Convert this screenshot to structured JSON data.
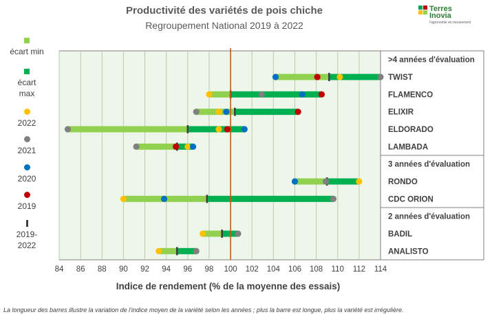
{
  "header": {
    "title": "Productivité des variétés  de pois chiche",
    "subtitle": "Regroupement National 2019 à 2022"
  },
  "logo": {
    "brand_line1": "Terres",
    "brand_line2": "Inovia",
    "tagline": "l'agronomie en mouvement"
  },
  "legend": {
    "items": [
      {
        "label": "écart min",
        "marker": "square",
        "color": "#92d050"
      },
      {
        "label": "écart max",
        "marker": "square",
        "color": "#00b050"
      },
      {
        "label": "2022",
        "marker": "circle",
        "color": "#ffc000"
      },
      {
        "label": "2021",
        "marker": "circle",
        "color": "#808080"
      },
      {
        "label": "2020",
        "marker": "circle",
        "color": "#0070c0"
      },
      {
        "label": "2019",
        "marker": "circle",
        "color": "#c00000"
      },
      {
        "label": "2019-2022",
        "marker": "bar",
        "color": "#404040"
      }
    ]
  },
  "footnote": "La longueur des barres illustre la variation de l'indice moyen de la variété selon les années ; plus la barre est longue, plus la variété est irrégulière.",
  "chart_data": {
    "type": "bar",
    "xlabel": "Indice de rendement (% de la moyenne des essais)",
    "xlim": [
      84,
      114
    ],
    "xticks": [
      84,
      86,
      88,
      90,
      92,
      94,
      96,
      98,
      100,
      102,
      104,
      106,
      108,
      110,
      112,
      114
    ],
    "reference_line": 100,
    "colors": {
      "min_bar": "#92d050",
      "max_bar": "#00b050",
      "y2022": "#ffc000",
      "y2021": "#808080",
      "y2020": "#0070c0",
      "y2019": "#c00000",
      "mean": "#404040",
      "reference": "#c55a11",
      "plot_bg": "#eef6ea"
    },
    "groups": [
      {
        "label": ">4 années d'évaluation",
        "varieties": [
          {
            "name": "TWIST",
            "min": 104.2,
            "mean": 109.2,
            "max": 114.0,
            "y2022": 110.2,
            "y2021": 114.0,
            "y2020": 104.2,
            "y2019": 108.1
          },
          {
            "name": "FLAMENCO",
            "min": 98.0,
            "mean": 100.0,
            "max": 108.5,
            "y2022": 98.0,
            "y2021": 102.9,
            "y2020": 106.7,
            "y2019": 108.5
          },
          {
            "name": "ELIXIR",
            "min": 96.8,
            "mean": 100.4,
            "max": 106.3,
            "y2022": 98.9,
            "y2021": 96.8,
            "y2020": 99.6,
            "y2019": 106.3
          },
          {
            "name": "ELDORADO",
            "min": 84.8,
            "mean": 96.0,
            "max": 101.3,
            "y2022": 98.9,
            "y2021": 84.8,
            "y2020": 101.3,
            "y2019": 99.7
          },
          {
            "name": "LAMBADA",
            "min": 91.2,
            "mean": 95.0,
            "max": 96.5,
            "y2022": 96.0,
            "y2021": 91.2,
            "y2020": 96.5,
            "y2019": 94.9
          }
        ]
      },
      {
        "label": "3 années d'évaluation",
        "varieties": [
          {
            "name": "RONDO",
            "min": 106.0,
            "mean": 109.0,
            "max": 112.0,
            "y2022": 112.0,
            "y2021": 108.9,
            "y2020": 106.0,
            "y2019": null
          },
          {
            "name": "CDC ORION",
            "min": 90.0,
            "mean": 97.8,
            "max": 109.6,
            "y2022": 90.0,
            "y2021": 109.6,
            "y2020": 93.8,
            "y2019": null
          }
        ]
      },
      {
        "label": "2 années d'évaluation",
        "varieties": [
          {
            "name": "BADIL",
            "min": 97.4,
            "mean": 99.2,
            "max": 100.7,
            "y2022": 97.4,
            "y2021": 100.7,
            "y2020": null,
            "y2019": null
          },
          {
            "name": "ANALISTO",
            "min": 93.3,
            "mean": 95.0,
            "max": 96.8,
            "y2022": 93.3,
            "y2021": 96.8,
            "y2020": null,
            "y2019": null
          }
        ]
      }
    ]
  }
}
